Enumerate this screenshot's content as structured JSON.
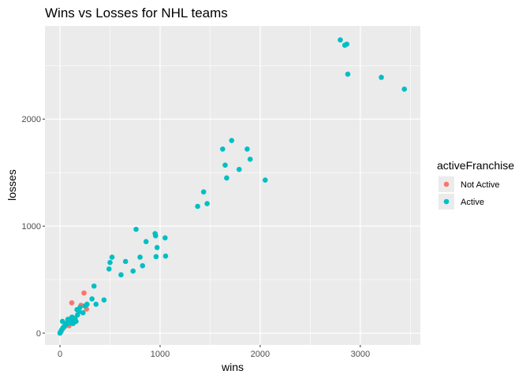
{
  "chart_data": {
    "type": "scatter",
    "title": "Wins vs Losses for NHL teams",
    "xlabel": "wins",
    "ylabel": "losses",
    "xlim": [
      -150,
      3600
    ],
    "ylim": [
      -110,
      2870
    ],
    "x_ticks": [
      0,
      1000,
      2000,
      3000
    ],
    "y_ticks": [
      0,
      1000,
      2000
    ],
    "x_tick_labels": [
      "0",
      "1000",
      "2000",
      "3000"
    ],
    "y_tick_labels": [
      "0",
      "1000",
      "2000"
    ],
    "grid": true,
    "legend": {
      "title": "activeFranchise",
      "position": "right"
    },
    "series": [
      {
        "name": "Not Active",
        "color": "#f8766d",
        "points": [
          [
            118,
            283
          ],
          [
            240,
            375
          ],
          [
            210,
            260
          ],
          [
            265,
            225
          ],
          [
            80,
            120
          ],
          [
            60,
            90
          ],
          [
            100,
            110
          ],
          [
            45,
            60
          ],
          [
            30,
            45
          ],
          [
            20,
            35
          ],
          [
            130,
            120
          ],
          [
            90,
            70
          ],
          [
            150,
            140
          ],
          [
            10,
            15
          ]
        ]
      },
      {
        "name": "Active",
        "color": "#00bfc4",
        "points": [
          [
            2800,
            2740
          ],
          [
            2845,
            2690
          ],
          [
            2865,
            2700
          ],
          [
            2875,
            2420
          ],
          [
            3210,
            2390
          ],
          [
            3440,
            2280
          ],
          [
            1715,
            1800
          ],
          [
            1625,
            1720
          ],
          [
            1870,
            1720
          ],
          [
            1900,
            1625
          ],
          [
            1650,
            1570
          ],
          [
            1790,
            1530
          ],
          [
            1665,
            1450
          ],
          [
            2050,
            1430
          ],
          [
            1435,
            1320
          ],
          [
            1470,
            1210
          ],
          [
            1375,
            1185
          ],
          [
            760,
            970
          ],
          [
            950,
            930
          ],
          [
            955,
            910
          ],
          [
            1050,
            890
          ],
          [
            860,
            855
          ],
          [
            970,
            800
          ],
          [
            520,
            710
          ],
          [
            800,
            710
          ],
          [
            960,
            715
          ],
          [
            1055,
            720
          ],
          [
            500,
            660
          ],
          [
            655,
            670
          ],
          [
            825,
            630
          ],
          [
            490,
            600
          ],
          [
            730,
            580
          ],
          [
            610,
            545
          ],
          [
            340,
            440
          ],
          [
            320,
            320
          ],
          [
            440,
            310
          ],
          [
            360,
            270
          ],
          [
            270,
            270
          ],
          [
            250,
            255
          ],
          [
            200,
            240
          ],
          [
            170,
            220
          ],
          [
            190,
            200
          ],
          [
            230,
            190
          ],
          [
            175,
            170
          ],
          [
            120,
            150
          ],
          [
            130,
            140
          ],
          [
            150,
            130
          ],
          [
            110,
            120
          ],
          [
            90,
            110
          ],
          [
            140,
            100
          ],
          [
            100,
            95
          ],
          [
            70,
            90
          ],
          [
            60,
            80
          ],
          [
            50,
            70
          ],
          [
            40,
            60
          ],
          [
            30,
            50
          ],
          [
            20,
            35
          ],
          [
            10,
            20
          ],
          [
            5,
            10
          ],
          [
            0,
            0
          ],
          [
            25,
            110
          ],
          [
            80,
            130
          ],
          [
            160,
            110
          ],
          [
            130,
            90
          ]
        ]
      }
    ]
  }
}
